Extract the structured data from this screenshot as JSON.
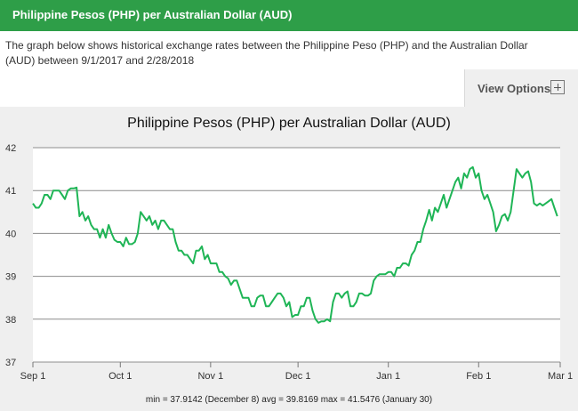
{
  "header": {
    "title": "Philippine Pesos (PHP) per Australian Dollar (AUD)"
  },
  "description": "The graph below shows historical exchange rates between the Philippine Peso (PHP) and the Australian Dollar (AUD) between 9/1/2017 and 2/28/2018",
  "view_options": {
    "label": "View Options",
    "icon": "plus-box-icon"
  },
  "colors": {
    "header_bg": "#2e9e48",
    "line": "#1fb556",
    "panel_bg": "#efefef"
  },
  "chart_data": {
    "type": "line",
    "title": "Philippine Pesos (PHP) per Australian Dollar (AUD)",
    "xlabel": "",
    "ylabel": "",
    "ylim": [
      37,
      42
    ],
    "yticks": [
      "37",
      "38",
      "39",
      "40",
      "41",
      "42"
    ],
    "xticks": [
      {
        "label": "Sep 1",
        "date": "2017-09-01"
      },
      {
        "label": "Oct 1",
        "date": "2017-10-01"
      },
      {
        "label": "Nov 1",
        "date": "2017-11-01"
      },
      {
        "label": "Dec 1",
        "date": "2017-12-01"
      },
      {
        "label": "Jan 1",
        "date": "2018-01-01"
      },
      {
        "label": "Feb 1",
        "date": "2018-02-01"
      },
      {
        "label": "Mar 1",
        "date": "2018-03-01"
      }
    ],
    "grid": true,
    "series": [
      {
        "points": [
          [
            "2017-09-01",
            40.7
          ],
          [
            "2017-09-02",
            40.6
          ],
          [
            "2017-09-03",
            40.6
          ],
          [
            "2017-09-04",
            40.7
          ],
          [
            "2017-09-05",
            40.9
          ],
          [
            "2017-09-06",
            40.9
          ],
          [
            "2017-09-07",
            40.8
          ],
          [
            "2017-09-08",
            41.0
          ],
          [
            "2017-09-09",
            41.0
          ],
          [
            "2017-09-10",
            41.0
          ],
          [
            "2017-09-11",
            40.9
          ],
          [
            "2017-09-12",
            40.8
          ],
          [
            "2017-09-13",
            41.0
          ],
          [
            "2017-09-14",
            41.05
          ],
          [
            "2017-09-15",
            41.05
          ],
          [
            "2017-09-16",
            41.07
          ],
          [
            "2017-09-17",
            40.4
          ],
          [
            "2017-09-18",
            40.5
          ],
          [
            "2017-09-19",
            40.3
          ],
          [
            "2017-09-20",
            40.4
          ],
          [
            "2017-09-21",
            40.2
          ],
          [
            "2017-09-22",
            40.1
          ],
          [
            "2017-09-23",
            40.1
          ],
          [
            "2017-09-24",
            39.9
          ],
          [
            "2017-09-25",
            40.1
          ],
          [
            "2017-09-26",
            39.9
          ],
          [
            "2017-09-27",
            40.2
          ],
          [
            "2017-09-28",
            40.0
          ],
          [
            "2017-09-29",
            39.85
          ],
          [
            "2017-09-30",
            39.8
          ],
          [
            "2017-10-01",
            39.8
          ],
          [
            "2017-10-02",
            39.7
          ],
          [
            "2017-10-03",
            39.9
          ],
          [
            "2017-10-04",
            39.75
          ],
          [
            "2017-10-05",
            39.75
          ],
          [
            "2017-10-06",
            39.8
          ],
          [
            "2017-10-07",
            40.0
          ],
          [
            "2017-10-08",
            40.5
          ],
          [
            "2017-10-09",
            40.4
          ],
          [
            "2017-10-10",
            40.3
          ],
          [
            "2017-10-11",
            40.4
          ],
          [
            "2017-10-12",
            40.2
          ],
          [
            "2017-10-13",
            40.3
          ],
          [
            "2017-10-14",
            40.1
          ],
          [
            "2017-10-15",
            40.3
          ],
          [
            "2017-10-16",
            40.3
          ],
          [
            "2017-10-17",
            40.2
          ],
          [
            "2017-10-18",
            40.1
          ],
          [
            "2017-10-19",
            40.1
          ],
          [
            "2017-10-20",
            39.8
          ],
          [
            "2017-10-21",
            39.6
          ],
          [
            "2017-10-22",
            39.6
          ],
          [
            "2017-10-23",
            39.5
          ],
          [
            "2017-10-24",
            39.5
          ],
          [
            "2017-10-25",
            39.4
          ],
          [
            "2017-10-26",
            39.3
          ],
          [
            "2017-10-27",
            39.6
          ],
          [
            "2017-10-28",
            39.6
          ],
          [
            "2017-10-29",
            39.7
          ],
          [
            "2017-10-30",
            39.4
          ],
          [
            "2017-10-31",
            39.5
          ],
          [
            "2017-11-01",
            39.3
          ],
          [
            "2017-11-02",
            39.3
          ],
          [
            "2017-11-03",
            39.3
          ],
          [
            "2017-11-04",
            39.1
          ],
          [
            "2017-11-05",
            39.1
          ],
          [
            "2017-11-06",
            39.0
          ],
          [
            "2017-11-07",
            38.95
          ],
          [
            "2017-11-08",
            38.8
          ],
          [
            "2017-11-09",
            38.9
          ],
          [
            "2017-11-10",
            38.9
          ],
          [
            "2017-11-11",
            38.7
          ],
          [
            "2017-11-12",
            38.5
          ],
          [
            "2017-11-13",
            38.5
          ],
          [
            "2017-11-14",
            38.5
          ],
          [
            "2017-11-15",
            38.3
          ],
          [
            "2017-11-16",
            38.3
          ],
          [
            "2017-11-17",
            38.5
          ],
          [
            "2017-11-18",
            38.55
          ],
          [
            "2017-11-19",
            38.55
          ],
          [
            "2017-11-20",
            38.3
          ],
          [
            "2017-11-21",
            38.3
          ],
          [
            "2017-11-22",
            38.4
          ],
          [
            "2017-11-23",
            38.5
          ],
          [
            "2017-11-24",
            38.6
          ],
          [
            "2017-11-25",
            38.6
          ],
          [
            "2017-11-26",
            38.5
          ],
          [
            "2017-11-27",
            38.3
          ],
          [
            "2017-11-28",
            38.4
          ],
          [
            "2017-11-29",
            38.05
          ],
          [
            "2017-11-30",
            38.1
          ],
          [
            "2017-12-01",
            38.1
          ],
          [
            "2017-12-02",
            38.3
          ],
          [
            "2017-12-03",
            38.3
          ],
          [
            "2017-12-04",
            38.5
          ],
          [
            "2017-12-05",
            38.5
          ],
          [
            "2017-12-06",
            38.2
          ],
          [
            "2017-12-07",
            38.0
          ],
          [
            "2017-12-08",
            37.9142
          ],
          [
            "2017-12-09",
            37.95
          ],
          [
            "2017-12-10",
            37.95
          ],
          [
            "2017-12-11",
            38.0
          ],
          [
            "2017-12-12",
            37.95
          ],
          [
            "2017-12-13",
            38.4
          ],
          [
            "2017-12-14",
            38.6
          ],
          [
            "2017-12-15",
            38.6
          ],
          [
            "2017-12-16",
            38.5
          ],
          [
            "2017-12-17",
            38.6
          ],
          [
            "2017-12-18",
            38.65
          ],
          [
            "2017-12-19",
            38.3
          ],
          [
            "2017-12-20",
            38.3
          ],
          [
            "2017-12-21",
            38.4
          ],
          [
            "2017-12-22",
            38.6
          ],
          [
            "2017-12-23",
            38.6
          ],
          [
            "2017-12-24",
            38.55
          ],
          [
            "2017-12-25",
            38.55
          ],
          [
            "2017-12-26",
            38.6
          ],
          [
            "2017-12-27",
            38.9
          ],
          [
            "2017-12-28",
            39.0
          ],
          [
            "2017-12-29",
            39.05
          ],
          [
            "2017-12-30",
            39.05
          ],
          [
            "2017-12-31",
            39.05
          ],
          [
            "2018-01-01",
            39.1
          ],
          [
            "2018-01-02",
            39.1
          ],
          [
            "2018-01-03",
            39.0
          ],
          [
            "2018-01-04",
            39.2
          ],
          [
            "2018-01-05",
            39.2
          ],
          [
            "2018-01-06",
            39.3
          ],
          [
            "2018-01-07",
            39.3
          ],
          [
            "2018-01-08",
            39.25
          ],
          [
            "2018-01-09",
            39.5
          ],
          [
            "2018-01-10",
            39.6
          ],
          [
            "2018-01-11",
            39.8
          ],
          [
            "2018-01-12",
            39.8
          ],
          [
            "2018-01-13",
            40.1
          ],
          [
            "2018-01-14",
            40.3
          ],
          [
            "2018-01-15",
            40.55
          ],
          [
            "2018-01-16",
            40.3
          ],
          [
            "2018-01-17",
            40.6
          ],
          [
            "2018-01-18",
            40.5
          ],
          [
            "2018-01-19",
            40.7
          ],
          [
            "2018-01-20",
            40.9
          ],
          [
            "2018-01-21",
            40.6
          ],
          [
            "2018-01-22",
            40.8
          ],
          [
            "2018-01-23",
            41.0
          ],
          [
            "2018-01-24",
            41.2
          ],
          [
            "2018-01-25",
            41.3
          ],
          [
            "2018-01-26",
            41.05
          ],
          [
            "2018-01-27",
            41.4
          ],
          [
            "2018-01-28",
            41.3
          ],
          [
            "2018-01-29",
            41.5
          ],
          [
            "2018-01-30",
            41.5476
          ],
          [
            "2018-01-31",
            41.3
          ],
          [
            "2018-02-01",
            41.4
          ],
          [
            "2018-02-02",
            41.0
          ],
          [
            "2018-02-03",
            40.8
          ],
          [
            "2018-02-04",
            40.9
          ],
          [
            "2018-02-05",
            40.7
          ],
          [
            "2018-02-06",
            40.5
          ],
          [
            "2018-02-07",
            40.05
          ],
          [
            "2018-02-08",
            40.2
          ],
          [
            "2018-02-09",
            40.4
          ],
          [
            "2018-02-10",
            40.45
          ],
          [
            "2018-02-11",
            40.3
          ],
          [
            "2018-02-12",
            40.5
          ],
          [
            "2018-02-13",
            41.0
          ],
          [
            "2018-02-14",
            41.5
          ],
          [
            "2018-02-15",
            41.4
          ],
          [
            "2018-02-16",
            41.3
          ],
          [
            "2018-02-17",
            41.4
          ],
          [
            "2018-02-18",
            41.45
          ],
          [
            "2018-02-19",
            41.2
          ],
          [
            "2018-02-20",
            40.7
          ],
          [
            "2018-02-21",
            40.65
          ],
          [
            "2018-02-22",
            40.7
          ],
          [
            "2018-02-23",
            40.65
          ],
          [
            "2018-02-24",
            40.7
          ],
          [
            "2018-02-25",
            40.75
          ],
          [
            "2018-02-26",
            40.8
          ],
          [
            "2018-02-27",
            40.6
          ],
          [
            "2018-02-28",
            40.4
          ]
        ]
      }
    ],
    "stats_text": "min = 37.9142 (December 8) avg = 39.8169 max = 41.5476 (January 30)"
  }
}
